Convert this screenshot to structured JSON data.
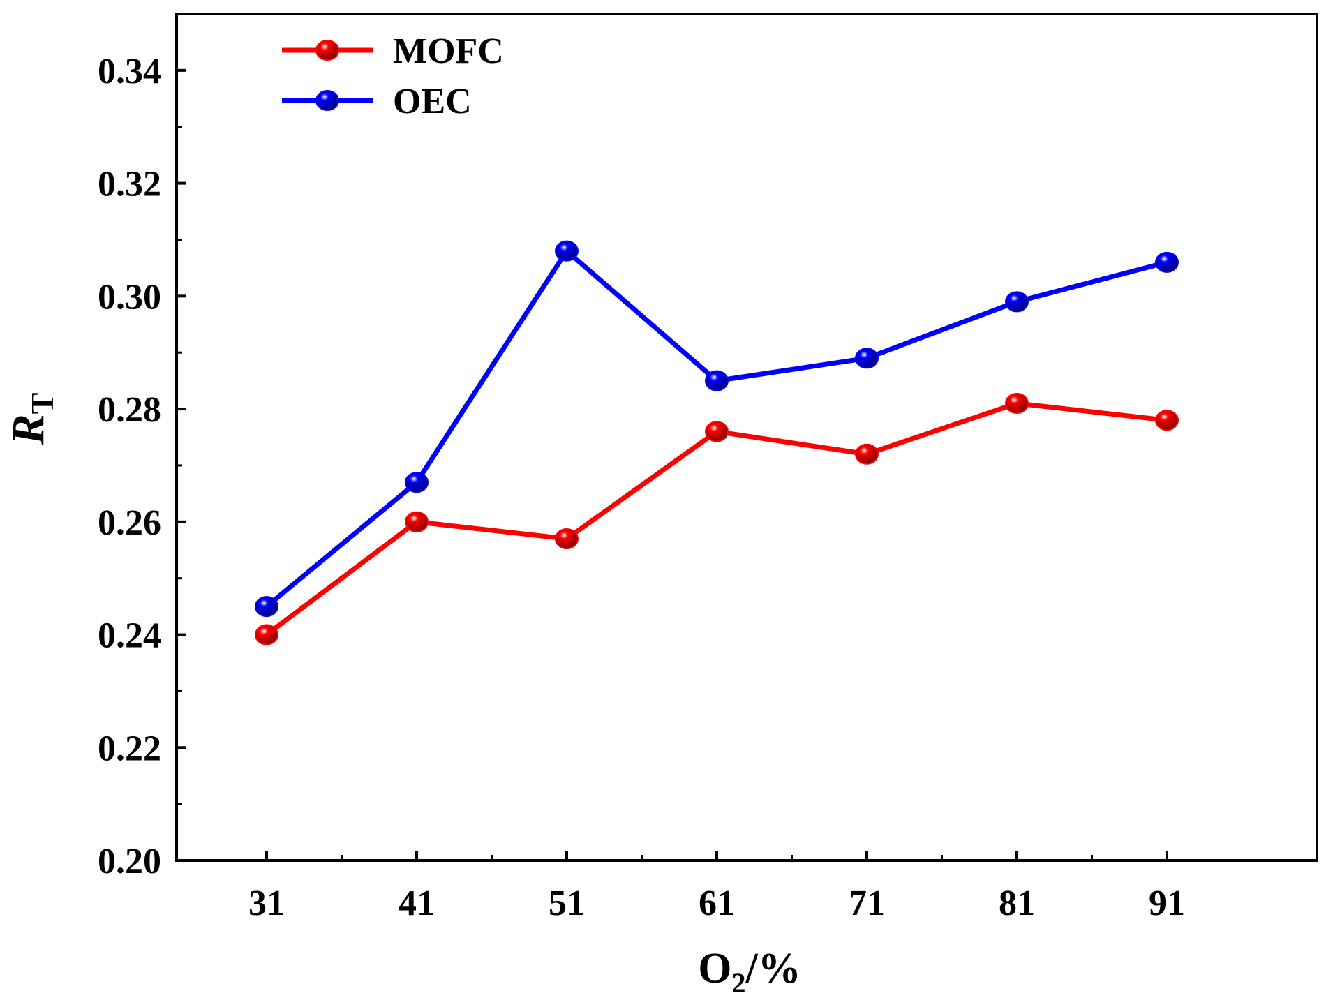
{
  "chart_data": {
    "type": "line",
    "title": "",
    "x": [
      31,
      41,
      51,
      61,
      71,
      81,
      91
    ],
    "xlabel": {
      "main": "O",
      "sub": "2",
      "suffix": "/%"
    },
    "ylabel": {
      "main": "R",
      "sub": "T"
    },
    "xlim": [
      25,
      101
    ],
    "ylim": [
      0.2,
      0.35
    ],
    "xticks": [
      "31",
      "41",
      "51",
      "61",
      "71",
      "81",
      "91"
    ],
    "yticks": [
      "0.20",
      "0.22",
      "0.24",
      "0.26",
      "0.28",
      "0.30",
      "0.32",
      "0.34"
    ],
    "legend_position": "top-left",
    "grid": false,
    "series": [
      {
        "name": "MOFC",
        "color": "#ff0000",
        "values": [
          0.24,
          0.26,
          0.257,
          0.276,
          0.272,
          0.281,
          0.278
        ]
      },
      {
        "name": "OEC",
        "color": "#0000ff",
        "values": [
          0.245,
          0.267,
          0.308,
          0.285,
          0.289,
          0.299,
          0.306
        ]
      }
    ]
  }
}
